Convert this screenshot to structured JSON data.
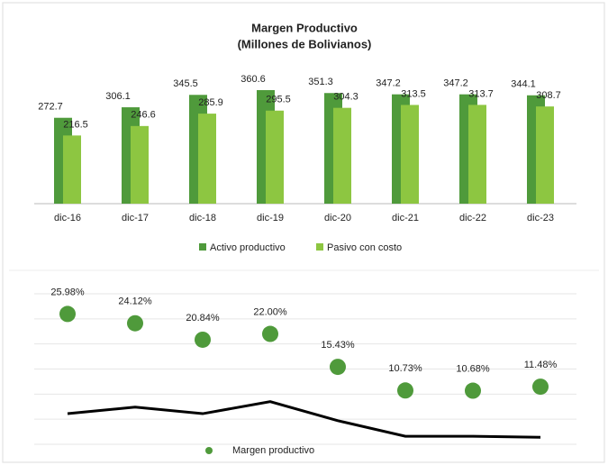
{
  "chart_data": [
    {
      "type": "bar",
      "title": "Margen Productivo",
      "subtitle": "(Millones de Bolivianos)",
      "categories": [
        "dic-16",
        "dic-17",
        "dic-18",
        "dic-19",
        "dic-20",
        "dic-21",
        "dic-22",
        "dic-23"
      ],
      "series": [
        {
          "name": "Activo productivo",
          "color": "#4f9a3b",
          "values": [
            272.7,
            306.1,
            345.5,
            360.6,
            351.3,
            347.2,
            347.2,
            344.1
          ]
        },
        {
          "name": "Pasivo con costo",
          "color": "#8dc641",
          "values": [
            216.5,
            246.6,
            285.9,
            295.5,
            304.3,
            313.5,
            313.7,
            308.7
          ]
        }
      ],
      "legend": "bottom"
    },
    {
      "type": "scatter",
      "categories": [
        "dic-16",
        "dic-17",
        "dic-18",
        "dic-19",
        "dic-20",
        "dic-21",
        "dic-22",
        "dic-23"
      ],
      "ylim": [
        0,
        30
      ],
      "yticks": [
        0,
        5,
        10,
        15,
        20,
        25,
        30
      ],
      "grid": true,
      "series": [
        {
          "name": "Margen productivo",
          "color": "#4f9a3b",
          "values": [
            25.98,
            24.12,
            20.84,
            22.0,
            15.43,
            10.73,
            10.68,
            11.48
          ],
          "value_labels": [
            "25.98%",
            "24.12%",
            "20.84%",
            "22.00%",
            "15.43%",
            "10.73%",
            "10.68%",
            "11.48%"
          ]
        },
        {
          "color": "#000000",
          "values": [
            6.1,
            7.4,
            6.1,
            8.5,
            4.7,
            1.6,
            1.6,
            1.4
          ]
        }
      ],
      "legend": "bottom"
    }
  ]
}
